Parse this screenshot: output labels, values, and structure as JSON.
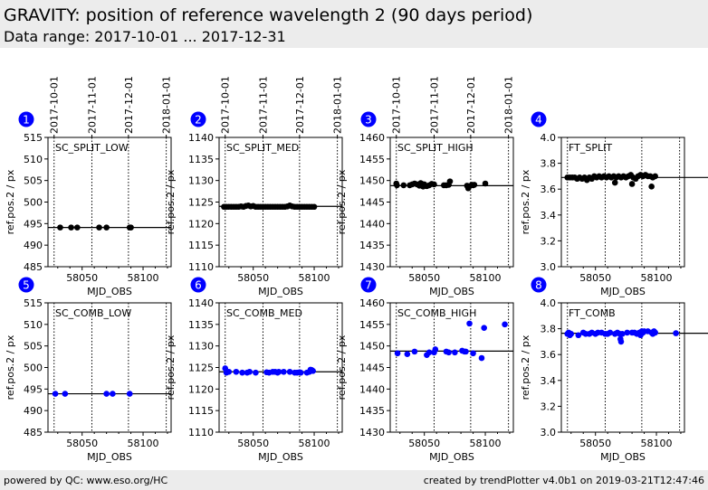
{
  "header": {
    "title": "GRAVITY: position of reference wavelength 2 (90 days period)",
    "subtitle": "Data range: 2017-10-01 ... 2017-12-31"
  },
  "footer": {
    "left": "powered by QC: www.eso.org/HC",
    "right": "created by trendPlotter v4.0b1 on 2019-03-21T12:47:46"
  },
  "colors": {
    "split_marker": "#000000",
    "comb_marker": "#0000ff",
    "badge": "#0000ff",
    "header_bg": "#ececec"
  },
  "chart_data": [
    {
      "type": "scatter",
      "index": "1",
      "label": "SC_SPLIT_LOW",
      "color": "#000000",
      "xlabel": "MJD_OBS",
      "ylabel": "ref.pos.2 / px",
      "xlim": [
        58022,
        58123
      ],
      "ylim": [
        485,
        515
      ],
      "yticks": [
        "485",
        "490",
        "495",
        "500",
        "505",
        "510",
        "515"
      ],
      "xticks": [
        "58050",
        "58100"
      ],
      "date_ticks": [
        "2017-10-01",
        "2017-11-01",
        "2017-12-01",
        "2018-01-01"
      ],
      "reference": 494.1,
      "x": [
        58032,
        58041,
        58046,
        58064,
        58070,
        58089,
        58090
      ],
      "y": [
        494.1,
        494.1,
        494.1,
        494.1,
        494.1,
        494.1,
        494.1
      ]
    },
    {
      "type": "scatter",
      "index": "2",
      "label": "SC_SPLIT_MED",
      "color": "#000000",
      "xlabel": "MJD_OBS",
      "ylabel": "ref.pos.2 / px",
      "xlim": [
        58022,
        58123
      ],
      "ylim": [
        1110,
        1140
      ],
      "yticks": [
        "1110",
        "1115",
        "1120",
        "1125",
        "1130",
        "1135",
        "1140"
      ],
      "xticks": [
        "58050",
        "58100"
      ],
      "date_ticks": [
        "2017-10-01",
        "2017-11-01",
        "2017-12-01",
        "2018-01-01"
      ],
      "reference": 1124.0,
      "x": [
        58026,
        58028,
        58030,
        58032,
        58034,
        58036,
        58038,
        58040,
        58042,
        58044,
        58046,
        58048,
        58050,
        58052,
        58054,
        58056,
        58058,
        58060,
        58062,
        58064,
        58066,
        58068,
        58070,
        58072,
        58074,
        58076,
        58078,
        58080,
        58082,
        58084,
        58086,
        58088,
        58090,
        58092,
        58094,
        58096,
        58098,
        58100
      ],
      "y": [
        1123.9,
        1123.9,
        1123.9,
        1123.9,
        1123.9,
        1123.9,
        1123.9,
        1124.0,
        1123.9,
        1124.1,
        1124.2,
        1124.0,
        1124.1,
        1123.9,
        1123.9,
        1123.9,
        1123.9,
        1123.9,
        1123.9,
        1123.9,
        1123.9,
        1123.9,
        1123.9,
        1123.9,
        1123.9,
        1123.9,
        1124.0,
        1124.2,
        1124.0,
        1123.9,
        1123.9,
        1123.9,
        1123.9,
        1123.9,
        1123.9,
        1123.9,
        1123.9,
        1123.9
      ]
    },
    {
      "type": "scatter",
      "index": "3",
      "label": "SC_SPLIT_HIGH",
      "color": "#000000",
      "xlabel": "MJD_OBS",
      "ylabel": "ref.pos.2 / px",
      "xlim": [
        58022,
        58123
      ],
      "ylim": [
        1430,
        1460
      ],
      "yticks": [
        "1430",
        "1435",
        "1440",
        "1445",
        "1450",
        "1455",
        "1460"
      ],
      "xticks": [
        "58050",
        "58100"
      ],
      "date_ticks": [
        "2017-10-01",
        "2017-11-01",
        "2017-12-01",
        "2018-01-01"
      ],
      "reference": 1448.8,
      "x": [
        58027,
        58027.5,
        58033,
        58038,
        58040,
        58042,
        58044,
        58046,
        58047,
        58048,
        58049,
        58050,
        58052,
        58054,
        58056,
        58058,
        58066,
        58068,
        58070,
        58071,
        58085,
        58086,
        58087,
        58089,
        58090,
        58091,
        58100
      ],
      "y": [
        1449.3,
        1448.9,
        1448.9,
        1448.9,
        1449.1,
        1449.3,
        1449.1,
        1448.8,
        1449.4,
        1449.2,
        1448.6,
        1449.1,
        1448.7,
        1448.9,
        1449.2,
        1449.1,
        1448.9,
        1448.9,
        1449.0,
        1449.8,
        1448.8,
        1448.2,
        1448.7,
        1449.0,
        1448.9,
        1449.0,
        1449.3
      ]
    },
    {
      "type": "scatter",
      "index": "4",
      "label": "FT_SPLIT",
      "color": "#000000",
      "xlabel": "MJD_OBS",
      "ylabel": "ref.pos.2 / px",
      "xlim": [
        58022,
        58123
      ],
      "ylim": [
        3.0,
        4.0
      ],
      "yticks": [
        "3.0",
        "3.2",
        "3.4",
        "3.6",
        "3.8",
        "4.0"
      ],
      "xticks": [
        "58050",
        "58100"
      ],
      "date_ticks": [
        "2017-10-01",
        "2017-11-01",
        "2017-12-01",
        "2018-01-01"
      ],
      "reference": 3.69,
      "x": [
        58027,
        58029,
        58031,
        58033,
        58035,
        58037,
        58039,
        58041,
        58043,
        58045,
        58047,
        58049,
        58051,
        58053,
        58055,
        58057,
        58059,
        58061,
        58063,
        58065,
        58066,
        58067,
        58069,
        58071,
        58073,
        58075,
        58077,
        58079,
        58080,
        58081,
        58083,
        58085,
        58087,
        58089,
        58091,
        58093,
        58095,
        58096,
        58097,
        58099
      ],
      "y": [
        3.69,
        3.69,
        3.69,
        3.69,
        3.68,
        3.69,
        3.68,
        3.69,
        3.67,
        3.69,
        3.68,
        3.7,
        3.69,
        3.7,
        3.69,
        3.7,
        3.69,
        3.7,
        3.69,
        3.7,
        3.65,
        3.69,
        3.7,
        3.69,
        3.7,
        3.69,
        3.7,
        3.71,
        3.64,
        3.69,
        3.68,
        3.7,
        3.71,
        3.7,
        3.71,
        3.7,
        3.7,
        3.62,
        3.69,
        3.7
      ]
    },
    {
      "type": "scatter",
      "index": "5",
      "label": "SC_COMB_LOW",
      "color": "#0000ff",
      "xlabel": "MJD_OBS",
      "ylabel": "ref.pos.2 / px",
      "xlim": [
        58022,
        58123
      ],
      "ylim": [
        485,
        515
      ],
      "yticks": [
        "485",
        "490",
        "495",
        "500",
        "505",
        "510",
        "515"
      ],
      "xticks": [
        "58050",
        "58100"
      ],
      "date_ticks": [
        "2017-10-01",
        "2017-11-01",
        "2017-12-01",
        "2018-01-01"
      ],
      "reference": 493.9,
      "x": [
        58028,
        58036,
        58070,
        58075,
        58089
      ],
      "y": [
        493.9,
        493.9,
        493.9,
        493.9,
        493.9
      ]
    },
    {
      "type": "scatter",
      "index": "6",
      "label": "SC_COMB_MED",
      "color": "#0000ff",
      "xlabel": "MJD_OBS",
      "ylabel": "ref.pos.2 / px",
      "xlim": [
        58022,
        58123
      ],
      "ylim": [
        1110,
        1140
      ],
      "yticks": [
        "1110",
        "1115",
        "1120",
        "1125",
        "1130",
        "1135",
        "1140"
      ],
      "xticks": [
        "58050",
        "58100"
      ],
      "date_ticks": [
        "2017-10-01",
        "2017-11-01",
        "2017-12-01",
        "2018-01-01"
      ],
      "reference": 1124.0,
      "x": [
        58027,
        58028,
        58030,
        58036,
        58041,
        58045,
        58047,
        58052,
        58061,
        58063,
        58066,
        58068,
        58070,
        58071,
        58075,
        58080,
        58084,
        58086,
        58088,
        58089,
        58094,
        58096,
        58097,
        58098,
        58099
      ],
      "y": [
        1124.8,
        1123.8,
        1124.0,
        1124.0,
        1123.8,
        1123.8,
        1124.0,
        1123.8,
        1123.9,
        1123.8,
        1124.0,
        1124.0,
        1123.8,
        1124.0,
        1124.0,
        1124.0,
        1123.8,
        1123.8,
        1123.9,
        1123.8,
        1123.8,
        1124.0,
        1124.5,
        1124.4,
        1124.2
      ]
    },
    {
      "type": "scatter",
      "index": "7",
      "label": "SC_COMB_HIGH",
      "color": "#0000ff",
      "xlabel": "MJD_OBS",
      "ylabel": "ref.pos.2 / px",
      "xlim": [
        58022,
        58123
      ],
      "ylim": [
        1430,
        1460
      ],
      "yticks": [
        "1430",
        "1435",
        "1440",
        "1445",
        "1450",
        "1455",
        "1460"
      ],
      "xticks": [
        "58050",
        "58100"
      ],
      "date_ticks": [
        "2017-10-01",
        "2017-11-01",
        "2017-12-01",
        "2018-01-01"
      ],
      "reference": 1448.8,
      "x": [
        58028,
        58036,
        58042,
        58052,
        58054,
        58058,
        58059,
        58068,
        58070,
        58075,
        58081,
        58083,
        58084,
        58087,
        58090,
        58097,
        58099,
        58116
      ],
      "y": [
        1448.3,
        1448.1,
        1448.7,
        1447.9,
        1448.5,
        1448.5,
        1449.2,
        1448.7,
        1448.5,
        1448.5,
        1448.9,
        1448.7,
        1448.7,
        1455.2,
        1448.3,
        1447.2,
        1454.2,
        1455.0
      ]
    },
    {
      "type": "scatter",
      "index": "8",
      "label": "FT_COMB",
      "color": "#0000ff",
      "xlabel": "MJD_OBS",
      "ylabel": "ref.pos.2 / px",
      "xlim": [
        58022,
        58123
      ],
      "ylim": [
        3.0,
        4.0
      ],
      "yticks": [
        "3.0",
        "3.2",
        "3.4",
        "3.6",
        "3.8",
        "4.0"
      ],
      "xticks": [
        "58050",
        "58100"
      ],
      "date_ticks": [
        "2017-10-01",
        "2017-11-01",
        "2017-12-01",
        "2018-01-01"
      ],
      "reference": 3.765,
      "x": [
        58027,
        58028,
        58029,
        58030,
        58036,
        58040,
        58042,
        58045,
        58047,
        58050,
        58052,
        58055,
        58058,
        58060,
        58062,
        58066,
        58068,
        58070,
        58070.5,
        58071,
        58072,
        58076,
        58080,
        58082,
        58084,
        58086,
        58087,
        58088,
        58089,
        58090,
        58093,
        58096,
        58097,
        58098,
        58099,
        58116
      ],
      "y": [
        3.76,
        3.77,
        3.75,
        3.76,
        3.75,
        3.77,
        3.76,
        3.76,
        3.77,
        3.76,
        3.77,
        3.77,
        3.76,
        3.76,
        3.77,
        3.76,
        3.77,
        3.76,
        3.72,
        3.7,
        3.76,
        3.77,
        3.77,
        3.77,
        3.76,
        3.77,
        3.75,
        3.78,
        3.77,
        3.78,
        3.78,
        3.77,
        3.76,
        3.78,
        3.77,
        3.765
      ]
    }
  ]
}
